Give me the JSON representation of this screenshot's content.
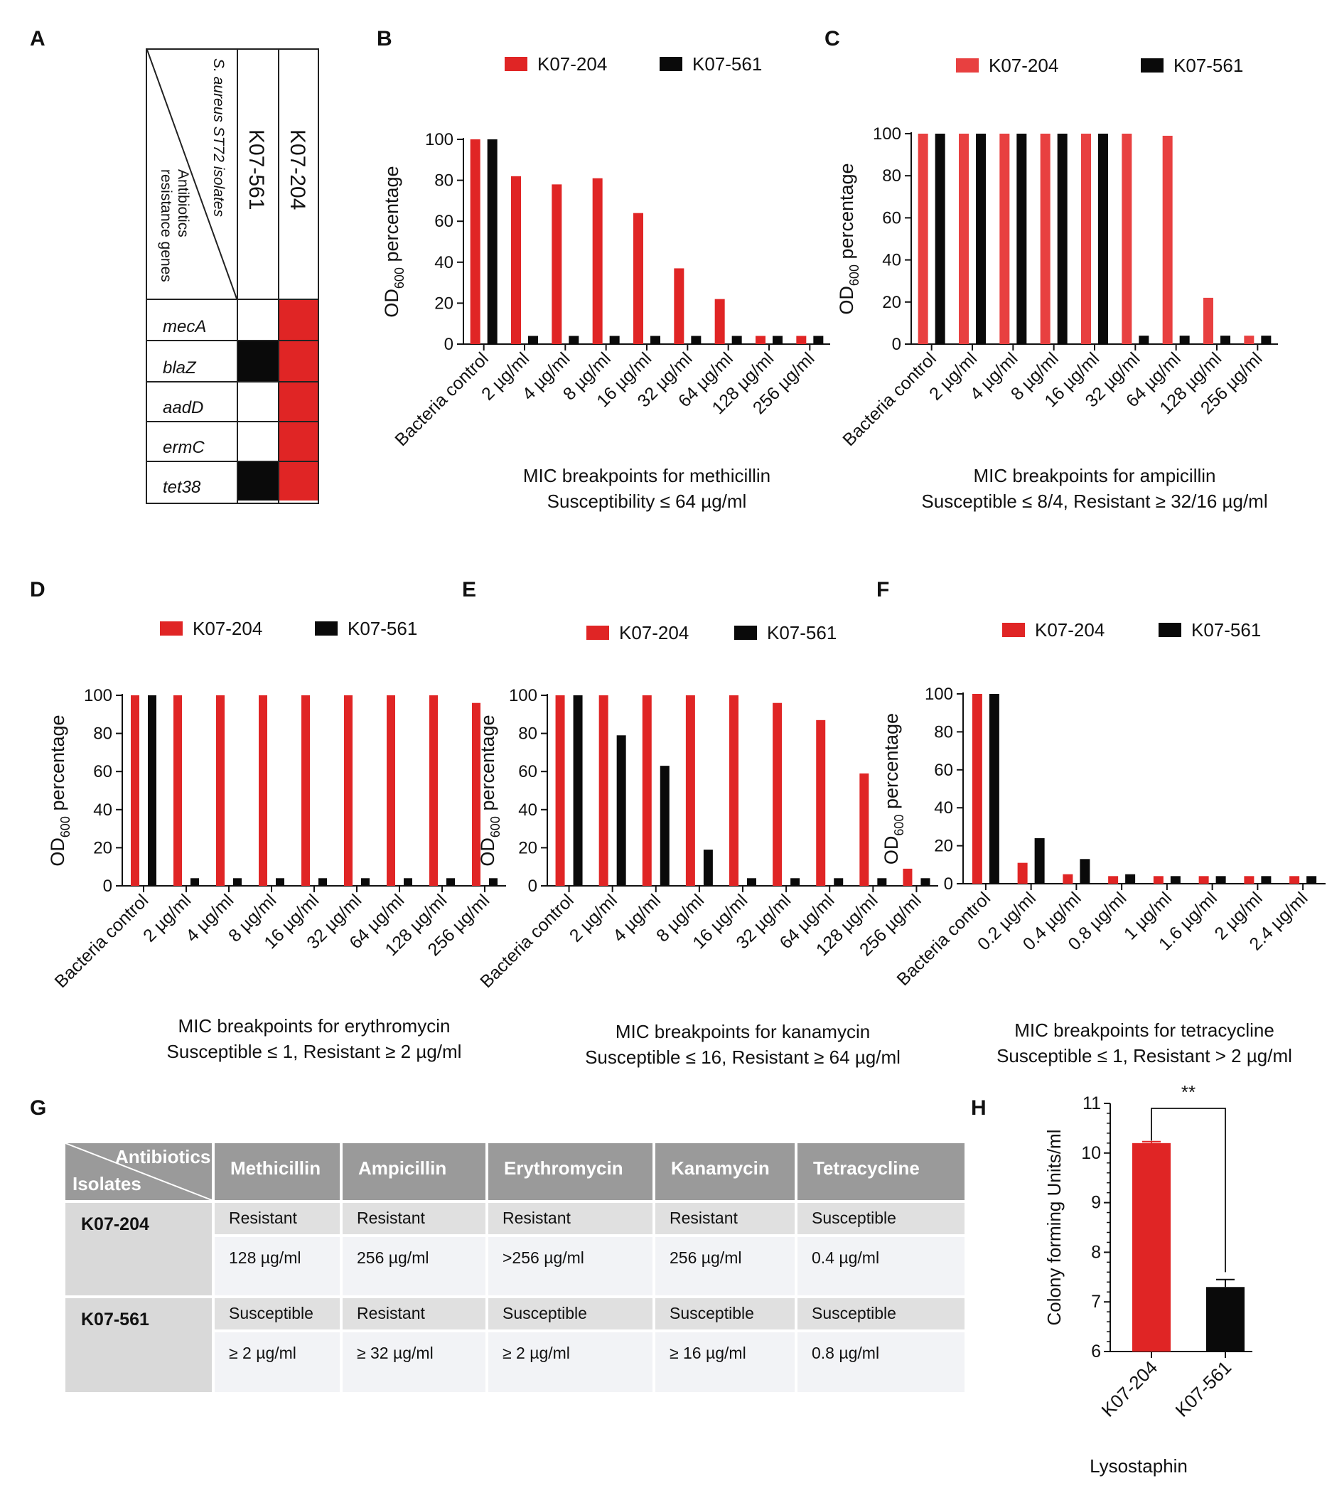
{
  "colors": {
    "red": "#e02525",
    "black": "#0a0a0a",
    "lightred": "#e84040"
  },
  "panel_letters": [
    "A",
    "B",
    "C",
    "D",
    "E",
    "F",
    "G",
    "H"
  ],
  "panelA": {
    "header_line1": "S. aureus ST72 isolates",
    "header_line2": "Antibiotics",
    "header_line3": "resistance genes",
    "isolates": [
      "K07-561",
      "K07-204"
    ],
    "genes": [
      "mecA",
      "blaZ",
      "aadD",
      "ermC",
      "tet38"
    ],
    "presence": {
      "K07-561": [
        false,
        true,
        false,
        false,
        true
      ],
      "K07-204": [
        true,
        true,
        true,
        true,
        true
      ]
    }
  },
  "chart_data": [
    {
      "id": "B",
      "type": "bar",
      "title": "MIC breakpoints for methicillin",
      "subtitle": "Susceptibility ≤ 64 µg/ml",
      "ylabel": "OD600 percentage",
      "ylim": [
        0,
        100
      ],
      "yticks": [
        0,
        20,
        40,
        60,
        80,
        100
      ],
      "legend_position": "top",
      "categories": [
        "Bacteria control",
        "2 µg/ml",
        "4 µg/ml",
        "8 µg/ml",
        "16 µg/ml",
        "32 µg/ml",
        "64 µg/ml",
        "128 µg/ml",
        "256 µg/ml"
      ],
      "series": [
        {
          "name": "K07-204",
          "color": "#e02525",
          "values": [
            100,
            82,
            78,
            81,
            64,
            37,
            22,
            4,
            4
          ]
        },
        {
          "name": "K07-561",
          "color": "#0a0a0a",
          "values": [
            100,
            4,
            4,
            4,
            4,
            4,
            4,
            4,
            4
          ]
        }
      ]
    },
    {
      "id": "C",
      "type": "bar",
      "title": "MIC breakpoints for ampicillin",
      "subtitle": "Susceptible ≤ 8/4, Resistant ≥ 32/16 µg/ml",
      "ylabel": "OD600 percentage",
      "ylim": [
        0,
        100
      ],
      "yticks": [
        0,
        20,
        40,
        60,
        80,
        100
      ],
      "legend_position": "top",
      "categories": [
        "Bacteria control",
        "2 µg/ml",
        "4 µg/ml",
        "8 µg/ml",
        "16 µg/ml",
        "32 µg/ml",
        "64 µg/ml",
        "128 µg/ml",
        "256 µg/ml"
      ],
      "series": [
        {
          "name": "K07-204",
          "color": "#e84040",
          "values": [
            100,
            100,
            100,
            100,
            100,
            100,
            99,
            22,
            4
          ]
        },
        {
          "name": "K07-561",
          "color": "#0a0a0a",
          "values": [
            100,
            100,
            100,
            100,
            100,
            4,
            4,
            4,
            4
          ]
        }
      ]
    },
    {
      "id": "D",
      "type": "bar",
      "title": "MIC breakpoints for erythromycin",
      "subtitle": "Susceptible ≤ 1, Resistant ≥ 2 µg/ml",
      "ylabel": "OD600 percentage",
      "ylim": [
        0,
        100
      ],
      "yticks": [
        0,
        20,
        40,
        60,
        80,
        100
      ],
      "legend_position": "top",
      "categories": [
        "Bacteria control",
        "2 µg/ml",
        "4 µg/ml",
        "8 µg/ml",
        "16 µg/ml",
        "32 µg/ml",
        "64 µg/ml",
        "128 µg/ml",
        "256 µg/ml"
      ],
      "series": [
        {
          "name": "K07-204",
          "color": "#e02525",
          "values": [
            100,
            100,
            100,
            100,
            100,
            100,
            100,
            100,
            96
          ]
        },
        {
          "name": "K07-561",
          "color": "#0a0a0a",
          "values": [
            100,
            4,
            4,
            4,
            4,
            4,
            4,
            4,
            4
          ]
        }
      ]
    },
    {
      "id": "E",
      "type": "bar",
      "title": "MIC breakpoints for kanamycin",
      "subtitle": "Susceptible ≤ 16, Resistant ≥ 64 µg/ml",
      "ylabel": "OD600 percentage",
      "ylim": [
        0,
        100
      ],
      "yticks": [
        0,
        20,
        40,
        60,
        80,
        100
      ],
      "legend_position": "top",
      "categories": [
        "Bacteria control",
        "2 µg/ml",
        "4 µg/ml",
        "8 µg/ml",
        "16 µg/ml",
        "32 µg/ml",
        "64 µg/ml",
        "128 µg/ml",
        "256 µg/ml"
      ],
      "series": [
        {
          "name": "K07-204",
          "color": "#e02525",
          "values": [
            100,
            100,
            100,
            100,
            100,
            96,
            87,
            59,
            9
          ]
        },
        {
          "name": "K07-561",
          "color": "#0a0a0a",
          "values": [
            100,
            79,
            63,
            19,
            4,
            4,
            4,
            4,
            4
          ]
        }
      ]
    },
    {
      "id": "F",
      "type": "bar",
      "title": "MIC breakpoints for tetracycline",
      "subtitle": "Susceptible ≤ 1, Resistant > 2 µg/ml",
      "ylabel": "OD600 percentage",
      "ylim": [
        0,
        100
      ],
      "yticks": [
        0,
        20,
        40,
        60,
        80,
        100
      ],
      "legend_position": "top",
      "categories": [
        "Bacteria control",
        "0.2 µg/ml",
        "0.4 µg/ml",
        "0.8 µg/ml",
        "1 µg/ml",
        "1.6 µg/ml",
        "2 µg/ml",
        "2.4 µg/ml"
      ],
      "series": [
        {
          "name": "K07-204",
          "color": "#e02525",
          "values": [
            100,
            11,
            5,
            4,
            4,
            4,
            4,
            4
          ]
        },
        {
          "name": "K07-561",
          "color": "#0a0a0a",
          "values": [
            100,
            24,
            13,
            5,
            4,
            4,
            4,
            4
          ]
        }
      ]
    },
    {
      "id": "H",
      "type": "bar",
      "xlabel": "Lysostaphin",
      "ylabel": "Colony forming Units/ml",
      "ylim": [
        6,
        11
      ],
      "yticks": [
        6,
        7,
        8,
        9,
        10,
        11
      ],
      "categories": [
        "K07-204",
        "K07-561"
      ],
      "values": [
        10.2,
        7.3
      ],
      "errors": [
        0.03,
        0.15
      ],
      "colors": [
        "#e02525",
        "#0a0a0a"
      ],
      "significance": "**"
    }
  ],
  "tableG": {
    "corner_top": "Antibiotics",
    "corner_bottom": "Isolates",
    "columns": [
      "Methicillin",
      "Ampicillin",
      "Erythromycin",
      "Kanamycin",
      "Tetracycline"
    ],
    "rows": [
      {
        "isolate": "K07-204",
        "status": [
          "Resistant",
          "Resistant",
          "Resistant",
          "Resistant",
          "Susceptible"
        ],
        "mic": [
          "128 µg/ml",
          "256 µg/ml",
          ">256 µg/ml",
          "256 µg/ml",
          "0.4 µg/ml"
        ]
      },
      {
        "isolate": "K07-561",
        "status": [
          "Susceptible",
          "Resistant",
          "Susceptible",
          "Susceptible",
          "Susceptible"
        ],
        "mic": [
          "≥ 2 µg/ml",
          "≥ 32 µg/ml",
          "≥ 2 µg/ml",
          "≥ 16 µg/ml",
          "0.8 µg/ml"
        ]
      }
    ]
  }
}
